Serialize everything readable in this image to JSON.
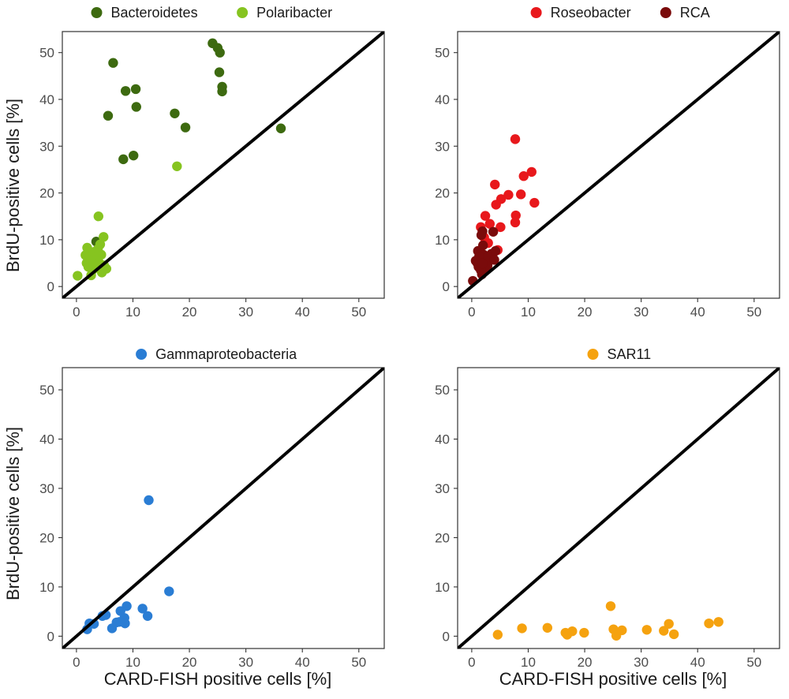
{
  "figure": {
    "y_axis_title": "BrdU-positive cells [%]",
    "x_axis_title": "CARD-FISH positive cells [%]"
  },
  "chart_data": [
    {
      "type": "scatter",
      "xlim": [
        -2.5,
        54.5
      ],
      "ylim": [
        -2.5,
        54.5
      ],
      "xticks": [
        0,
        10,
        20,
        30,
        40,
        50
      ],
      "yticks": [
        0,
        10,
        20,
        30,
        40,
        50
      ],
      "grid": false,
      "reference_line": "y = x",
      "legend_position": "top",
      "series": [
        {
          "name": "Bacteroidetes",
          "color": "#3d6a10",
          "points": [
            [
              6.5,
              47.8
            ],
            [
              8.7,
              41.8
            ],
            [
              10.5,
              42.2
            ],
            [
              10.6,
              38.4
            ],
            [
              5.6,
              36.5
            ],
            [
              8.3,
              27.2
            ],
            [
              10.1,
              28.0
            ],
            [
              17.4,
              37.0
            ],
            [
              19.3,
              34.0
            ],
            [
              24.1,
              52.0
            ],
            [
              25.0,
              51.0
            ],
            [
              25.4,
              50.0
            ],
            [
              25.3,
              45.8
            ],
            [
              25.8,
              42.7
            ],
            [
              25.8,
              41.7
            ],
            [
              36.2,
              33.8
            ],
            [
              3.5,
              9.6
            ]
          ]
        },
        {
          "name": "Polaribacter",
          "color": "#86c420",
          "points": [
            [
              17.8,
              25.7
            ],
            [
              3.9,
              15.0
            ],
            [
              0.2,
              2.3
            ],
            [
              4.8,
              10.6
            ],
            [
              1.9,
              8.3
            ],
            [
              2.6,
              2.4
            ],
            [
              4.5,
              3.0
            ],
            [
              5.3,
              3.8
            ],
            [
              1.8,
              5.0
            ],
            [
              2.4,
              6.2
            ],
            [
              3.1,
              7.4
            ],
            [
              3.6,
              6.4
            ],
            [
              4.0,
              5.1
            ],
            [
              4.4,
              6.8
            ],
            [
              2.1,
              4.2
            ],
            [
              2.9,
              3.6
            ],
            [
              3.3,
              5.6
            ],
            [
              4.9,
              4.5
            ],
            [
              1.6,
              6.7
            ],
            [
              3.8,
              8.0
            ],
            [
              2.5,
              5.4
            ],
            [
              4.2,
              9.0
            ],
            [
              3.0,
              4.8
            ]
          ]
        }
      ]
    },
    {
      "type": "scatter",
      "xlim": [
        -2.5,
        54.5
      ],
      "ylim": [
        -2.5,
        54.5
      ],
      "xticks": [
        0,
        10,
        20,
        30,
        40,
        50
      ],
      "yticks": [
        0,
        10,
        20,
        30,
        40,
        50
      ],
      "grid": false,
      "reference_line": "y = x",
      "legend_position": "top",
      "series": [
        {
          "name": "Roseobacter",
          "color": "#e8181c",
          "points": [
            [
              7.7,
              31.5
            ],
            [
              10.6,
              24.5
            ],
            [
              9.2,
              23.6
            ],
            [
              4.1,
              21.8
            ],
            [
              6.5,
              19.6
            ],
            [
              8.7,
              19.7
            ],
            [
              2.4,
              15.1
            ],
            [
              5.2,
              18.7
            ],
            [
              4.3,
              17.5
            ],
            [
              11.1,
              17.9
            ],
            [
              7.8,
              15.2
            ],
            [
              7.7,
              13.7
            ],
            [
              3.2,
              13.4
            ],
            [
              1.6,
              12.7
            ],
            [
              5.1,
              12.7
            ],
            [
              2.2,
              10.5
            ],
            [
              2.9,
              9.3
            ],
            [
              4.6,
              7.8
            ],
            [
              3.6,
              6.0
            ],
            [
              1.4,
              7.2
            ]
          ]
        },
        {
          "name": "RCA",
          "color": "#7a0b0b",
          "points": [
            [
              0.2,
              1.2
            ],
            [
              1.9,
              11.8
            ],
            [
              1.7,
              11.0
            ],
            [
              3.8,
              11.7
            ],
            [
              1.1,
              7.6
            ],
            [
              4.2,
              7.6
            ],
            [
              1.0,
              5.0
            ],
            [
              1.5,
              6.0
            ],
            [
              2.1,
              6.8
            ],
            [
              2.6,
              5.3
            ],
            [
              1.2,
              4.2
            ],
            [
              1.8,
              2.6
            ],
            [
              2.3,
              3.3
            ],
            [
              3.1,
              5.8
            ],
            [
              3.5,
              7.0
            ],
            [
              2.8,
              4.5
            ],
            [
              1.6,
              3.5
            ],
            [
              2.0,
              8.8
            ],
            [
              1.3,
              6.4
            ],
            [
              2.9,
              6.3
            ],
            [
              4.0,
              5.7
            ],
            [
              0.7,
              5.5
            ],
            [
              1.9,
              4.9
            ]
          ]
        }
      ]
    },
    {
      "type": "scatter",
      "xlim": [
        -2.5,
        54.5
      ],
      "ylim": [
        -2.5,
        54.5
      ],
      "xticks": [
        0,
        10,
        20,
        30,
        40,
        50
      ],
      "yticks": [
        0,
        10,
        20,
        30,
        40,
        50
      ],
      "grid": false,
      "reference_line": "y = x",
      "legend_position": "top",
      "series": [
        {
          "name": "Gammaproteobacteria",
          "color": "#2a7dd4",
          "points": [
            [
              12.8,
              27.6
            ],
            [
              16.4,
              9.1
            ],
            [
              8.9,
              6.1
            ],
            [
              11.7,
              5.6
            ],
            [
              12.6,
              4.1
            ],
            [
              7.8,
              5.1
            ],
            [
              8.5,
              3.7
            ],
            [
              4.6,
              4.1
            ],
            [
              5.2,
              4.3
            ],
            [
              2.3,
              2.6
            ],
            [
              1.9,
              1.4
            ],
            [
              3.1,
              2.5
            ],
            [
              6.3,
              1.6
            ],
            [
              7.1,
              2.8
            ],
            [
              8.6,
              2.6
            ],
            [
              7.6,
              2.9
            ]
          ]
        }
      ]
    },
    {
      "type": "scatter",
      "xlim": [
        -2.5,
        54.5
      ],
      "ylim": [
        -2.5,
        54.5
      ],
      "xticks": [
        0,
        10,
        20,
        30,
        40,
        50
      ],
      "yticks": [
        0,
        10,
        20,
        30,
        40,
        50
      ],
      "grid": false,
      "reference_line": "y = x",
      "legend_position": "top",
      "series": [
        {
          "name": "SAR11",
          "color": "#f5a20f",
          "points": [
            [
              4.6,
              0.3
            ],
            [
              8.9,
              1.6
            ],
            [
              13.4,
              1.7
            ],
            [
              16.6,
              0.7
            ],
            [
              16.9,
              0.3
            ],
            [
              17.8,
              1.0
            ],
            [
              19.9,
              0.7
            ],
            [
              24.6,
              6.1
            ],
            [
              25.1,
              1.4
            ],
            [
              25.6,
              0.1
            ],
            [
              26.6,
              1.2
            ],
            [
              31.0,
              1.3
            ],
            [
              34.0,
              1.1
            ],
            [
              34.9,
              2.5
            ],
            [
              35.8,
              0.4
            ],
            [
              42.0,
              2.6
            ],
            [
              43.7,
              2.9
            ]
          ]
        }
      ]
    }
  ]
}
